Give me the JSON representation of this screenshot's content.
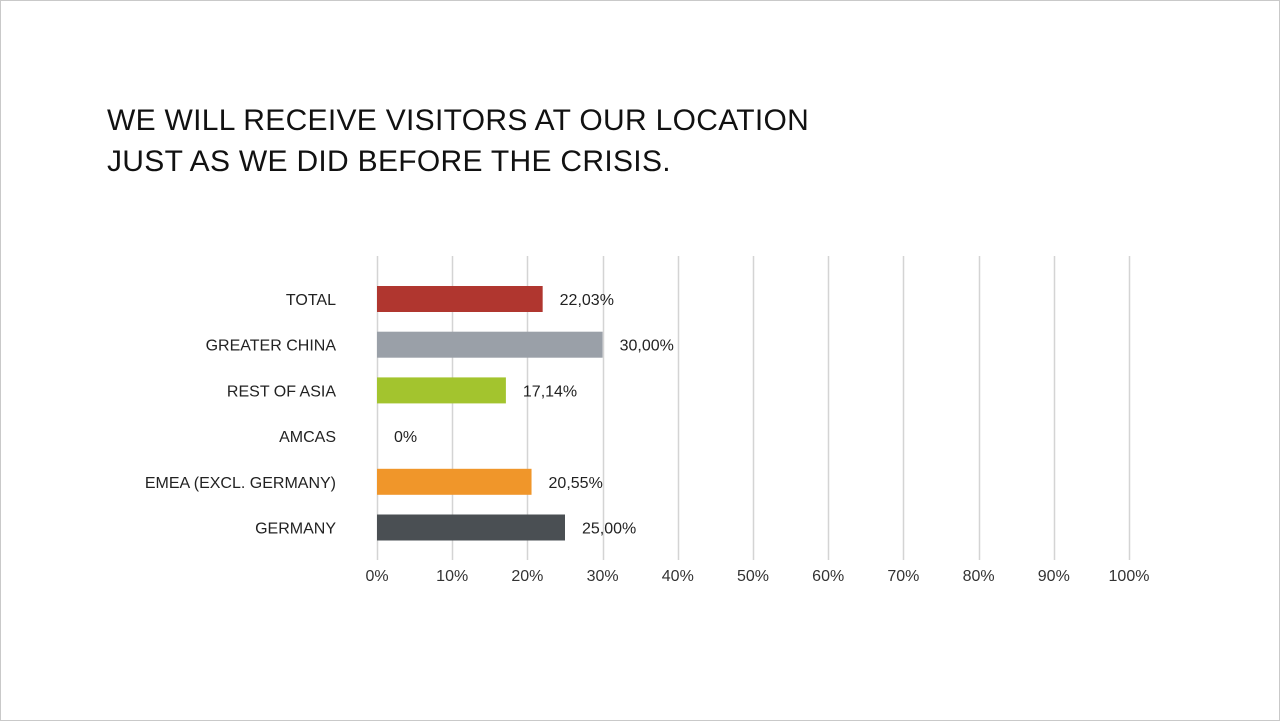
{
  "title_lines": [
    "WE WILL RECEIVE VISITORS AT OUR LOCATION",
    "JUST AS WE DID BEFORE THE CRISIS."
  ],
  "chart_data": {
    "type": "bar",
    "orientation": "horizontal",
    "title": "WE WILL RECEIVE VISITORS AT OUR LOCATION JUST AS WE DID BEFORE THE CRISIS.",
    "xlabel": "",
    "ylabel": "",
    "categories": [
      "TOTAL",
      "GREATER CHINA",
      "REST OF ASIA",
      "AMCAS",
      "EMEA (EXCL. GERMANY)",
      "GERMANY"
    ],
    "values": [
      22.03,
      30.0,
      17.14,
      0,
      20.55,
      25.0
    ],
    "value_labels": [
      "22,03%",
      "30,00%",
      "17,14%",
      "0%",
      "20,55%",
      "25,00%"
    ],
    "colors": [
      "#b0362f",
      "#9aa0a8",
      "#a3c42e",
      "#8c8c8c",
      "#f0962a",
      "#4a4f53"
    ],
    "xlim": [
      0,
      100
    ],
    "xticks": [
      0,
      10,
      20,
      30,
      40,
      50,
      60,
      70,
      80,
      90,
      100
    ],
    "xtick_labels": [
      "0%",
      "10%",
      "20%",
      "30%",
      "40%",
      "50%",
      "60%",
      "70%",
      "80%",
      "90%",
      "100%"
    ],
    "grid": true,
    "gridline_color": "#d4d4d4",
    "legend": "none"
  }
}
